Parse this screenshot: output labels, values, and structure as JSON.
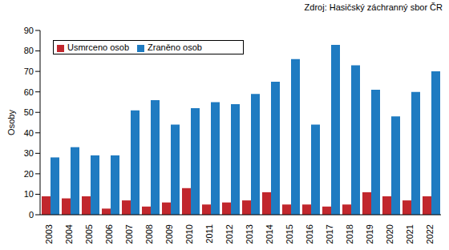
{
  "chart_data": {
    "type": "bar",
    "annotations": [
      "Zdroj: Hasičský záchranný sbor ČR"
    ],
    "y_label": "Osoby",
    "categories": [
      "2003",
      "2004",
      "2005",
      "2006",
      "2007",
      "2008",
      "2009",
      "2010",
      "2011",
      "2012",
      "2013",
      "2014",
      "2015",
      "2016",
      "2017",
      "2018",
      "2019",
      "2020",
      "2021",
      "2022"
    ],
    "series": [
      {
        "name": "Usmrceno osob",
        "color": "#c1272d",
        "values": [
          9,
          8,
          9,
          3,
          7,
          4,
          6,
          13,
          5,
          6,
          7,
          11,
          5,
          5,
          4,
          5,
          11,
          9,
          7,
          9
        ]
      },
      {
        "name": "Zraněno osob",
        "color": "#1f7bc1",
        "values": [
          28,
          33,
          29,
          29,
          51,
          56,
          44,
          52,
          55,
          54,
          59,
          65,
          76,
          44,
          83,
          73,
          61,
          48,
          60,
          70
        ]
      }
    ],
    "ylim": [
      0,
      90
    ],
    "yticks": [
      0,
      10,
      20,
      30,
      40,
      50,
      60,
      70,
      80,
      90
    ],
    "grid": false,
    "legend": "upper left"
  }
}
